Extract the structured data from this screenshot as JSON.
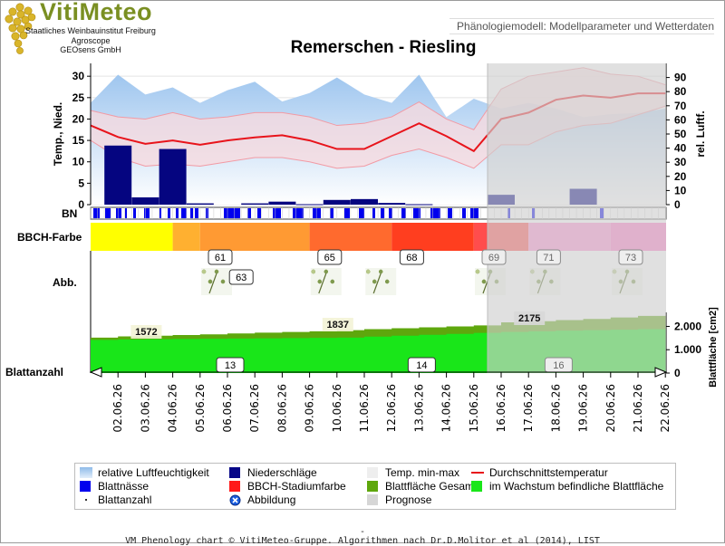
{
  "header": {
    "brand": "VitiMeteo",
    "org_lines": [
      "Staatliches Weinbauinstitut Freiburg",
      "Agroscope",
      "GEOsens GmbH"
    ],
    "model_label": "Phänologiemodell: Modellparameter und Wetterdaten"
  },
  "chart_data": {
    "type": "line",
    "title": "Remerschen - Riesling",
    "dates": [
      "02.06.26",
      "03.06.26",
      "04.06.26",
      "05.06.26",
      "06.06.26",
      "07.06.26",
      "08.06.26",
      "09.06.26",
      "10.06.26",
      "11.06.26",
      "12.06.26",
      "13.06.26",
      "14.06.26",
      "15.06.26",
      "16.06.26",
      "17.06.26",
      "18.06.26",
      "19.06.26",
      "20.06.26",
      "21.06.26",
      "22.06.26"
    ],
    "forecast_start": "16.06.26",
    "weather_panel": {
      "y_left_label": "Temp., Nied.",
      "y_left_ticks": [
        0,
        5,
        10,
        15,
        20,
        25,
        30
      ],
      "y_left_range": [
        0,
        33
      ],
      "y_right_label": "rel. Luftf.",
      "y_right_ticks": [
        0,
        10,
        20,
        30,
        40,
        50,
        60,
        70,
        80,
        90
      ],
      "y_right_range": [
        0,
        100
      ],
      "series": [
        {
          "name": "Durchschnittstemperatur",
          "x": [
            "01.06.26",
            "02.06.26",
            "03.06.26",
            "04.06.26",
            "05.06.26",
            "06.06.26",
            "07.06.26",
            "08.06.26",
            "09.06.26",
            "10.06.26",
            "11.06.26",
            "12.06.26",
            "13.06.26",
            "14.06.26",
            "15.06.26",
            "16.06.26",
            "17.06.26",
            "18.06.26",
            "19.06.26",
            "20.06.26",
            "21.06.26",
            "22.06.26"
          ],
          "values": [
            18.5,
            15.8,
            14.2,
            15.0,
            14.0,
            15.0,
            15.7,
            16.2,
            15.0,
            13.0,
            13.0,
            16.0,
            19.0,
            16.0,
            12.5,
            20.0,
            21.5,
            24.5,
            25.5,
            25.0,
            26.0,
            26.0
          ]
        },
        {
          "name": "Temp. max",
          "x": [
            "01.06.26",
            "02.06.26",
            "03.06.26",
            "04.06.26",
            "05.06.26",
            "06.06.26",
            "07.06.26",
            "08.06.26",
            "09.06.26",
            "10.06.26",
            "11.06.26",
            "12.06.26",
            "13.06.26",
            "14.06.26",
            "15.06.26",
            "16.06.26",
            "17.06.26",
            "18.06.26",
            "19.06.26",
            "20.06.26",
            "21.06.26",
            "22.06.26"
          ],
          "values": [
            22.0,
            20.5,
            20.0,
            21.5,
            20.0,
            20.5,
            21.5,
            21.5,
            20.5,
            18.5,
            19.0,
            20.5,
            24.0,
            20.0,
            17.5,
            27.0,
            30.0,
            31.0,
            32.0,
            30.5,
            30.0,
            28.0
          ]
        },
        {
          "name": "Temp. min",
          "x": [
            "01.06.26",
            "02.06.26",
            "03.06.26",
            "04.06.26",
            "05.06.26",
            "06.06.26",
            "07.06.26",
            "08.06.26",
            "09.06.26",
            "10.06.26",
            "11.06.26",
            "12.06.26",
            "13.06.26",
            "14.06.26",
            "15.06.26",
            "16.06.26",
            "17.06.26",
            "18.06.26",
            "19.06.26",
            "20.06.26",
            "21.06.26",
            "22.06.26"
          ],
          "values": [
            15.0,
            11.0,
            9.0,
            9.5,
            9.0,
            10.0,
            11.0,
            11.0,
            10.0,
            8.5,
            9.0,
            11.5,
            13.0,
            11.0,
            8.5,
            14.0,
            14.0,
            17.0,
            18.5,
            19.0,
            21.0,
            23.0
          ]
        },
        {
          "name": "relative Luftfeuchtigkeit",
          "x": [
            "01.06.26",
            "02.06.26",
            "03.06.26",
            "04.06.26",
            "05.06.26",
            "06.06.26",
            "07.06.26",
            "08.06.26",
            "09.06.26",
            "10.06.26",
            "11.06.26",
            "12.06.26",
            "13.06.26",
            "14.06.26",
            "15.06.26",
            "16.06.26",
            "17.06.26",
            "18.06.26",
            "19.06.26",
            "20.06.26",
            "21.06.26",
            "22.06.26"
          ],
          "values": [
            72,
            92,
            78,
            83,
            72,
            81,
            87,
            73,
            79,
            90,
            78,
            72,
            92,
            62,
            75,
            68,
            72,
            68,
            62,
            64,
            65,
            68
          ]
        },
        {
          "name": "Niederschläge",
          "x": [
            "02.06.26",
            "03.06.26",
            "04.06.26",
            "05.06.26",
            "06.06.26",
            "07.06.26",
            "08.06.26",
            "09.06.26",
            "10.06.26",
            "11.06.26",
            "12.06.26",
            "13.06.26",
            "14.06.26",
            "15.06.26",
            "16.06.26",
            "17.06.26",
            "18.06.26",
            "19.06.26",
            "20.06.26",
            "21.06.26",
            "22.06.26"
          ],
          "values": [
            13.8,
            1.7,
            13.0,
            0.3,
            0.0,
            0.3,
            0.7,
            0.1,
            1.1,
            1.3,
            0.4,
            0.1,
            0.0,
            0.0,
            2.3,
            0.0,
            0.0,
            3.7,
            0.0,
            0.0,
            0.0
          ]
        }
      ]
    },
    "bn_row": {
      "label": "BN"
    },
    "bbch_row": {
      "label": "BBCH-Farbe",
      "segments": [
        {
          "from": "02.06.26",
          "to": "05.06.26",
          "color": "#ffff00"
        },
        {
          "from": "05.06.26",
          "to": "06.06.26",
          "color": "#ffb030"
        },
        {
          "from": "06.06.26",
          "to": "10.06.26",
          "color": "#ff9a33"
        },
        {
          "from": "10.06.26",
          "to": "13.06.26",
          "color": "#ff6a2e"
        },
        {
          "from": "13.06.26",
          "to": "16.06.26",
          "color": "#ff3e1f"
        },
        {
          "from": "16.06.26",
          "to": "18.06.26",
          "color": "#ff4d4d"
        },
        {
          "from": "18.06.26",
          "to": "21.06.26",
          "color": "#ff8fd0"
        },
        {
          "from": "21.06.26",
          "to": "22.06.26",
          "color": "#ff7ac5"
        }
      ],
      "stage_labels": [
        {
          "date": "06.06.26",
          "text": "61"
        },
        {
          "date": "10.06.26",
          "text": "65"
        },
        {
          "date": "13.06.26",
          "text": "68"
        },
        {
          "date": "16.06.26",
          "text": "69"
        },
        {
          "date": "18.06.26",
          "text": "71"
        },
        {
          "date": "21.06.26",
          "text": "73"
        }
      ]
    },
    "abb_row": {
      "label": "Abb.",
      "images": [
        {
          "date": "06.06.26",
          "stage": "63"
        },
        {
          "date": "10.06.26",
          "stage": "65"
        },
        {
          "date": "12.06.26",
          "stage": "68"
        },
        {
          "date": "16.06.26",
          "stage": "69"
        },
        {
          "date": "18.06.26",
          "stage": "71"
        },
        {
          "date": "21.06.26",
          "stage": "73"
        }
      ],
      "image_labels": [
        {
          "date": "07.06.26",
          "text": "63"
        }
      ]
    },
    "leaf_panel": {
      "label": "Blattanzahl",
      "y_right_label": "Blattfläche [cm2]",
      "y_right_ticks": [
        0,
        1000,
        2000
      ],
      "y_right_tick_labels": [
        "0",
        "1.000",
        "2.000"
      ],
      "y_right_range": [
        0,
        2600
      ],
      "series": [
        {
          "name": "Blattfläche Gesamt",
          "x": [
            "02.06.26",
            "03.06.26",
            "04.06.26",
            "05.06.26",
            "06.06.26",
            "07.06.26",
            "08.06.26",
            "09.06.26",
            "10.06.26",
            "11.06.26",
            "12.06.26",
            "13.06.26",
            "14.06.26",
            "15.06.26",
            "16.06.26",
            "17.06.26",
            "18.06.26",
            "19.06.26",
            "20.06.26",
            "21.06.26",
            "22.06.26"
          ],
          "values": [
            1520,
            1572,
            1600,
            1630,
            1660,
            1700,
            1730,
            1760,
            1790,
            1837,
            1880,
            1920,
            1960,
            2000,
            2040,
            2175,
            2220,
            2270,
            2320,
            2380,
            2450
          ]
        },
        {
          "name": "im Wachstum befindliche Blattfläche",
          "x": [
            "02.06.26",
            "03.06.26",
            "04.06.26",
            "05.06.26",
            "06.06.26",
            "07.06.26",
            "08.06.26",
            "09.06.26",
            "10.06.26",
            "11.06.26",
            "12.06.26",
            "13.06.26",
            "14.06.26",
            "15.06.26",
            "16.06.26",
            "17.06.26",
            "18.06.26",
            "19.06.26",
            "20.06.26",
            "21.06.26",
            "22.06.26"
          ],
          "values": [
            1420,
            1440,
            1450,
            1460,
            1470,
            1480,
            1490,
            1500,
            1510,
            1520,
            1560,
            1600,
            1640,
            1680,
            1720,
            1760,
            1790,
            1820,
            1840,
            1860,
            1880
          ]
        }
      ],
      "area_labels": [
        {
          "date": "03.06.26",
          "text": "1572"
        },
        {
          "date": "10.06.26",
          "text": "1837"
        },
        {
          "date": "17.06.26",
          "text": "2175"
        }
      ],
      "leaf_count_labels": [
        {
          "date": "06.06.26",
          "text": "13"
        },
        {
          "date": "13.06.26",
          "text": "14"
        },
        {
          "date": "18.06.26",
          "text": "16"
        }
      ]
    },
    "legend": [
      {
        "label": "relative Luftfeuchtigkeit",
        "swatch": "gradient-blue"
      },
      {
        "label": "Niederschläge",
        "swatch": "navy-square"
      },
      {
        "label": "Temp. min-max",
        "swatch": "light-square"
      },
      {
        "label": "Durchschnittstemperatur",
        "swatch": "red-line"
      },
      {
        "label": "Blattnässe",
        "swatch": "blue-square"
      },
      {
        "label": "BBCH-Stadiumfarbe",
        "swatch": "red-square"
      },
      {
        "label": "Blattfläche Gesamt",
        "swatch": "olive-square"
      },
      {
        "label": "im Wachstum befindliche Blattfläche",
        "swatch": "green-square"
      },
      {
        "label": "Blattanzahl",
        "swatch": "dot"
      },
      {
        "label": "Abbildung",
        "swatch": "blue-x-icon"
      },
      {
        "label": "Prognose",
        "swatch": "gray-square"
      }
    ]
  },
  "colors": {
    "humidity": "#9fc6ef",
    "precip": "#050580",
    "temp_band": "#f8d9dd",
    "temp_avg": "#e8141b",
    "leaf_wetness": "#0000ee",
    "leaf_total": "#5ea70d",
    "leaf_growing": "#19e619",
    "forecast": "#cfcfcf"
  },
  "footer": {
    "text": "VM Phenology chart © VitiMeteo-Gruppe. Algorithmen nach Dr.D.Molitor et al (2014), LIST",
    "dash": "-"
  }
}
